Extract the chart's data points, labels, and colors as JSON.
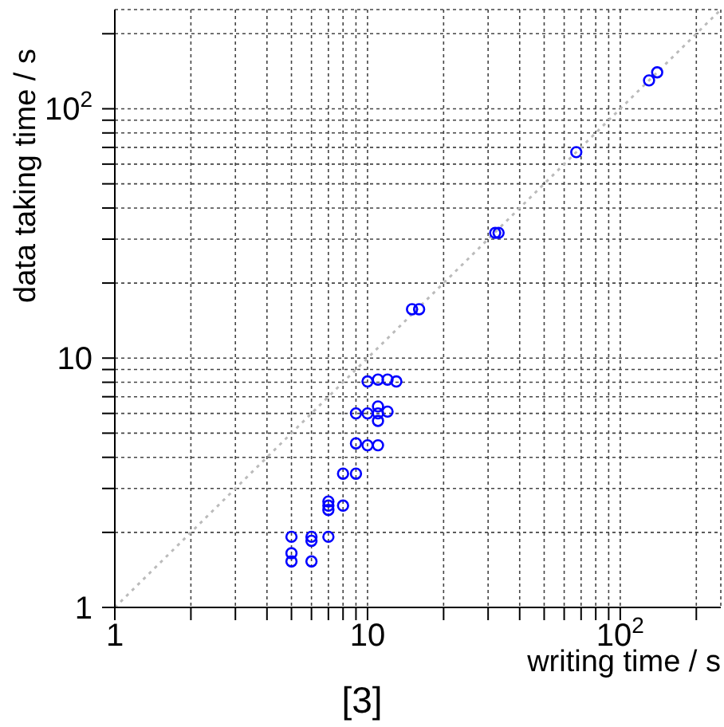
{
  "chart_data": {
    "type": "scatter",
    "xlabel": "writing time / s",
    "ylabel": "data taking time / s",
    "annotations": [
      "[3]"
    ],
    "log": "xy",
    "grid": true,
    "marker": "circle",
    "xlim": [
      1,
      250
    ],
    "ylim": [
      1,
      250
    ],
    "xticks": [
      1,
      {
        "value": 2,
        "label": null
      },
      {
        "value": 3,
        "label": null
      },
      {
        "value": 4,
        "label": null
      },
      {
        "value": 5,
        "label": null
      },
      {
        "value": 6,
        "label": null
      },
      {
        "value": 7,
        "label": null
      },
      {
        "value": 8,
        "label": null
      },
      {
        "value": 9,
        "label": null
      },
      10,
      {
        "value": 20,
        "label": null
      },
      {
        "value": 30,
        "label": null
      },
      {
        "value": 40,
        "label": null
      },
      {
        "value": 50,
        "label": null
      },
      {
        "value": 60,
        "label": null
      },
      {
        "value": 70,
        "label": null
      },
      {
        "value": 80,
        "label": null
      },
      {
        "value": 90,
        "label": null
      },
      {
        "value": 100,
        "label": "10$^{2}$"
      },
      {
        "value": 200,
        "label": null
      }
    ],
    "yticks": [
      1,
      {
        "value": 2,
        "label": null
      },
      {
        "value": 3,
        "label": null
      },
      {
        "value": 4,
        "label": null
      },
      {
        "value": 5,
        "label": null
      },
      {
        "value": 6,
        "label": null
      },
      {
        "value": 7,
        "label": null
      },
      {
        "value": 8,
        "label": null
      },
      {
        "value": 9,
        "label": null
      },
      10,
      {
        "value": 20,
        "label": null
      },
      {
        "value": 30,
        "label": null
      },
      {
        "value": 40,
        "label": null
      },
      {
        "value": 50,
        "label": null
      },
      {
        "value": 60,
        "label": null
      },
      {
        "value": 70,
        "label": null
      },
      {
        "value": 80,
        "label": null
      },
      {
        "value": 90,
        "label": null
      },
      {
        "value": 100,
        "label": "10$^{2}$"
      },
      {
        "value": 200,
        "label": null
      }
    ],
    "series": [
      {
        "color": "#0000ff",
        "x": [
          5,
          5,
          5,
          6,
          6,
          6,
          7,
          7,
          7,
          7,
          8,
          8,
          9,
          9,
          9,
          10,
          10,
          10,
          11,
          11,
          11,
          11,
          11,
          12,
          12,
          13,
          15,
          16,
          32,
          33,
          67,
          130,
          140
        ],
        "values": [
          1.92,
          1.65,
          1.53,
          1.92,
          1.85,
          1.53,
          1.92,
          2.66,
          2.56,
          2.46,
          3.44,
          2.56,
          6.0,
          4.55,
          3.44,
          8.06,
          6.0,
          4.47,
          8.2,
          6.4,
          6.0,
          5.6,
          4.47,
          8.2,
          6.1,
          8.06,
          15.7,
          15.7,
          31.8,
          31.8,
          67,
          130,
          140
        ]
      },
      {
        "type": "line",
        "color": "#bbbbbb",
        "line_style": "dotted",
        "marker": "none",
        "x": [
          1,
          250
        ],
        "values": [
          1,
          250
        ]
      }
    ]
  }
}
